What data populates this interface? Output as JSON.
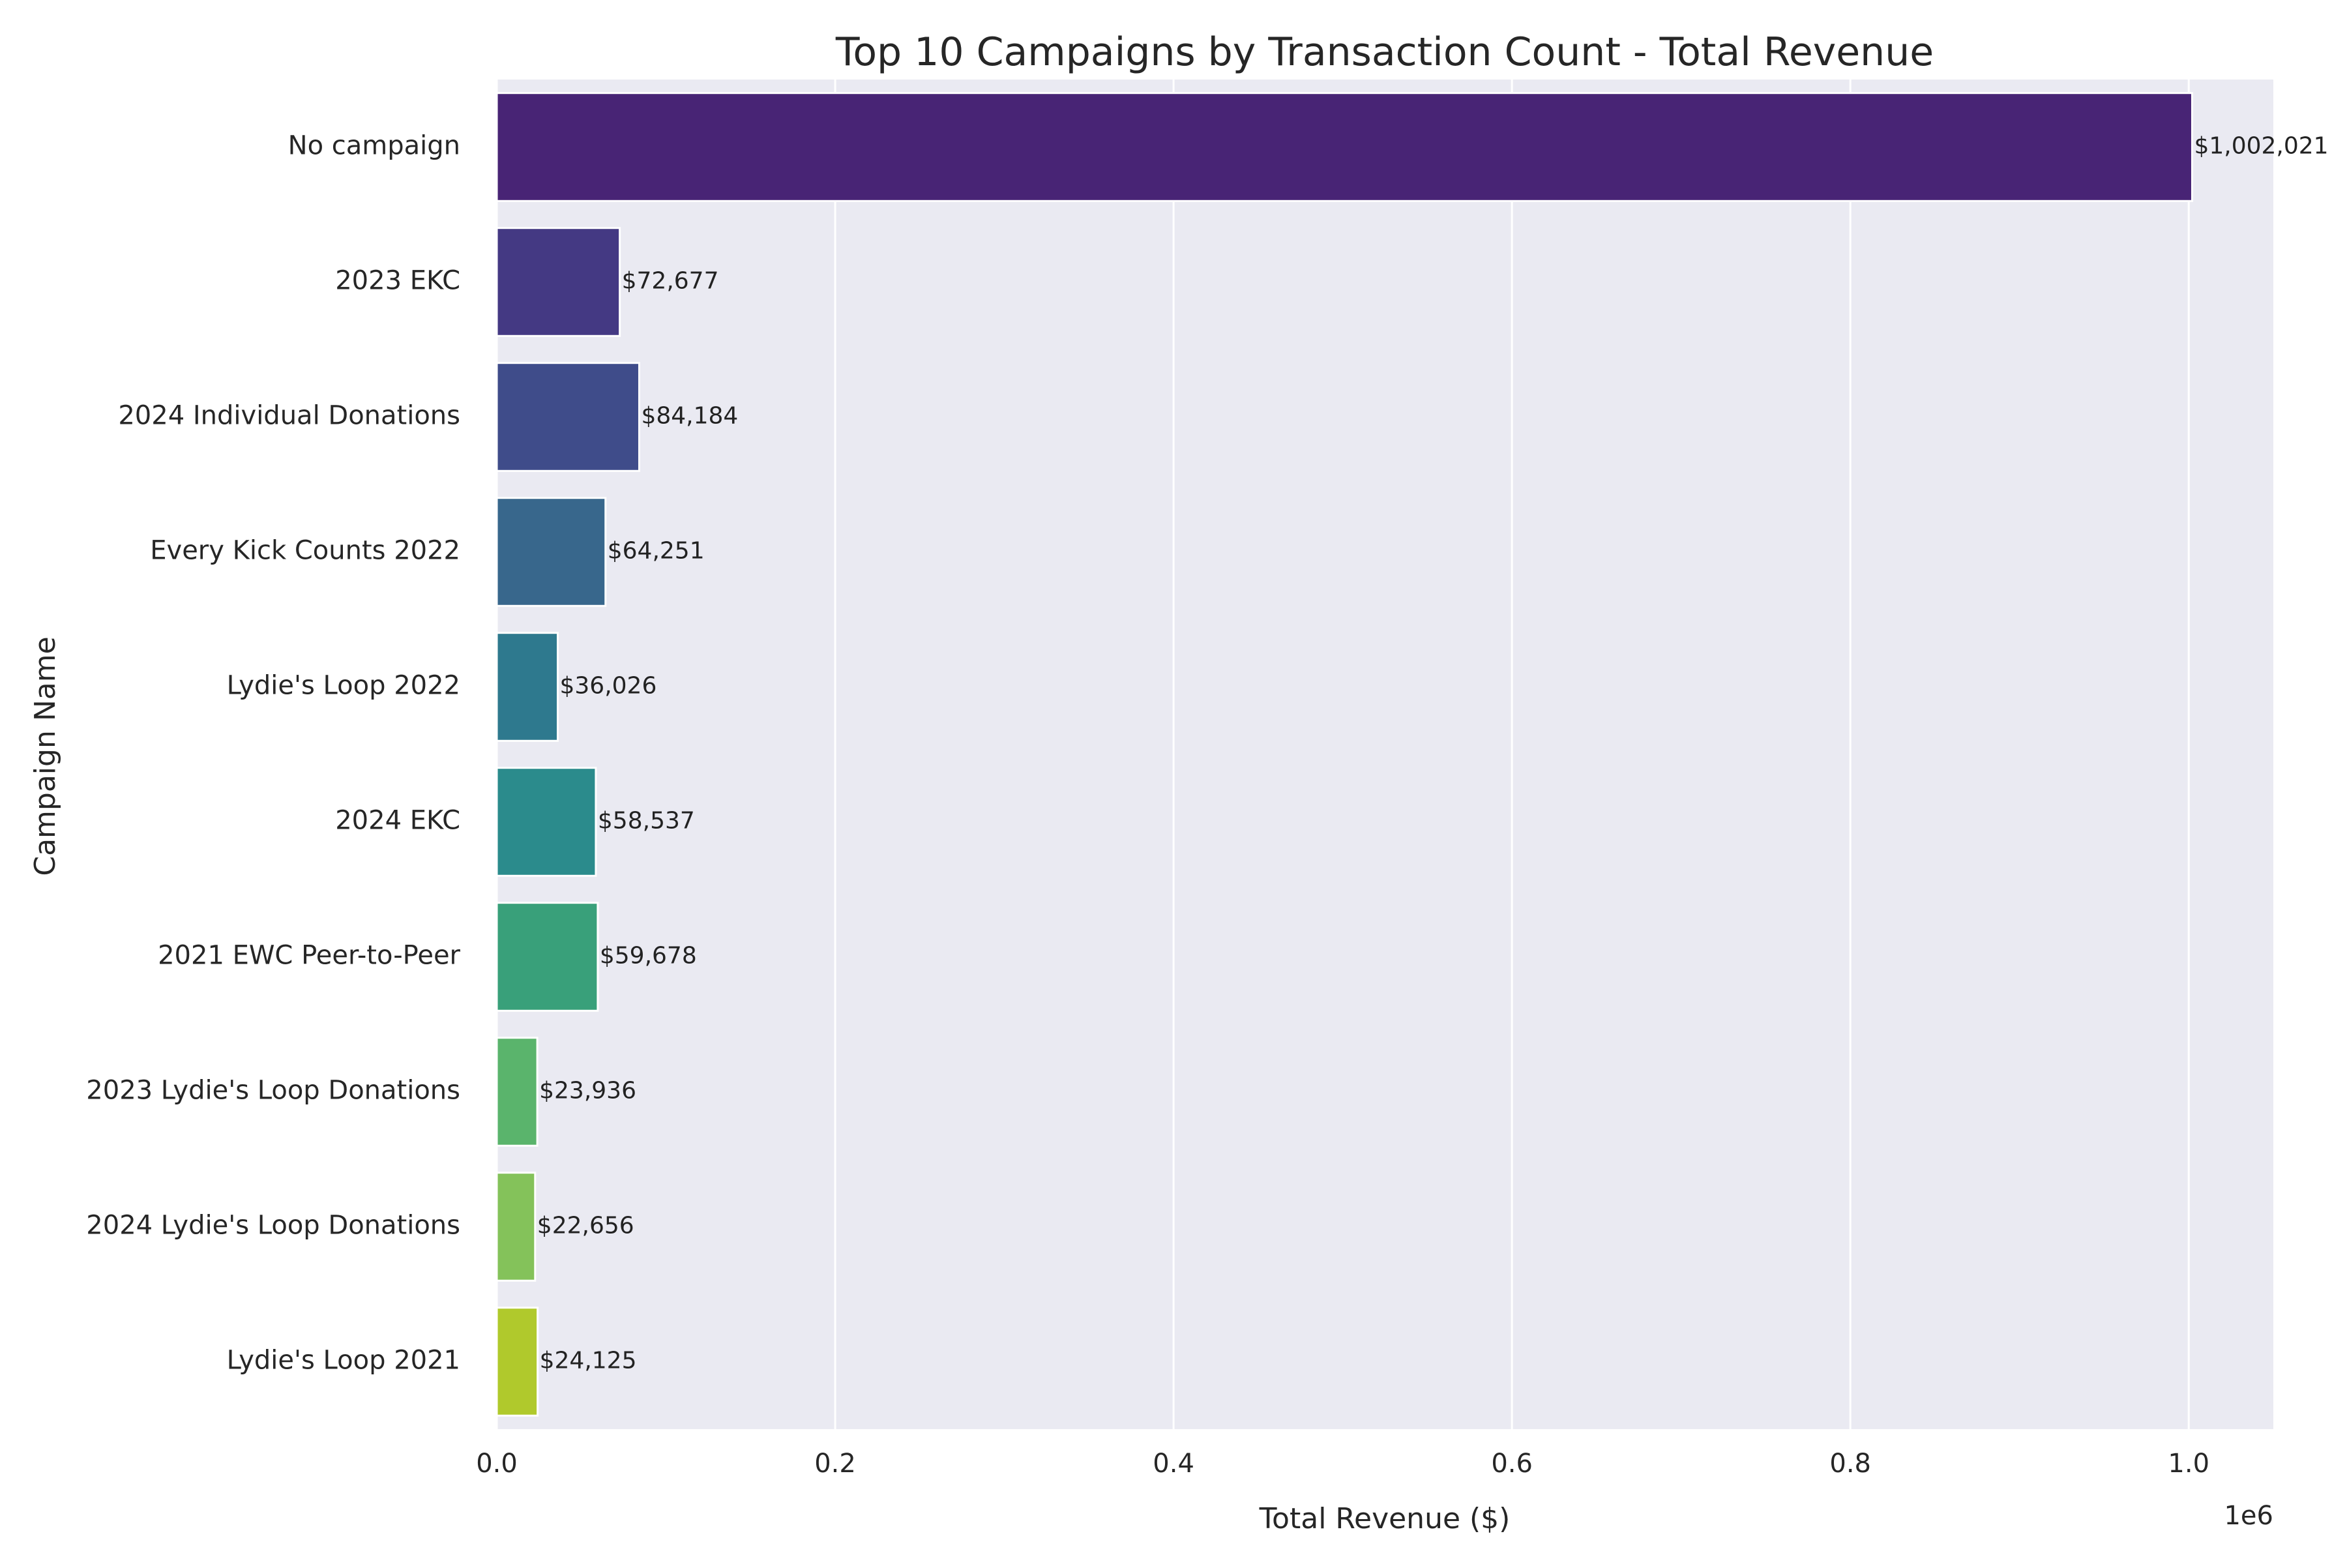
{
  "chart_data": {
    "type": "bar",
    "orientation": "horizontal",
    "title": "Top 10 Campaigns by Transaction Count - Total Revenue",
    "xlabel": "Total Revenue ($)",
    "ylabel": "Campaign Name",
    "x_offset_label": "1e6",
    "xlim": [
      0,
      1050000
    ],
    "xticks": [
      0,
      200000,
      400000,
      600000,
      800000,
      1000000
    ],
    "xtick_labels": [
      "0.0",
      "0.2",
      "0.4",
      "0.6",
      "0.8",
      "1.0"
    ],
    "grid": true,
    "categories": [
      "No campaign",
      "2023 EKC",
      "2024 Individual Donations",
      "Every Kick Counts 2022",
      "Lydie's Loop 2022",
      "2024 EKC",
      "2021 EWC Peer-to-Peer",
      "2023 Lydie's Loop Donations",
      "2024 Lydie's Loop Donations",
      "Lydie's Loop 2021"
    ],
    "values": [
      1002021,
      72677,
      84184,
      64251,
      36026,
      58537,
      59678,
      23936,
      22656,
      24125
    ],
    "value_labels": [
      "$1,002,021",
      "$72,677",
      "$84,184",
      "$64,251",
      "$36,026",
      "$58,537",
      "$59,678",
      "$23,936",
      "$22,656",
      "$24,125"
    ],
    "colors": [
      "#482475",
      "#443983",
      "#3f4c8a",
      "#38678c",
      "#2e798e",
      "#2b8b8c",
      "#39a07a",
      "#5ab46c",
      "#84c25a",
      "#b0c92c"
    ],
    "background_color": "#eaeaf2"
  }
}
